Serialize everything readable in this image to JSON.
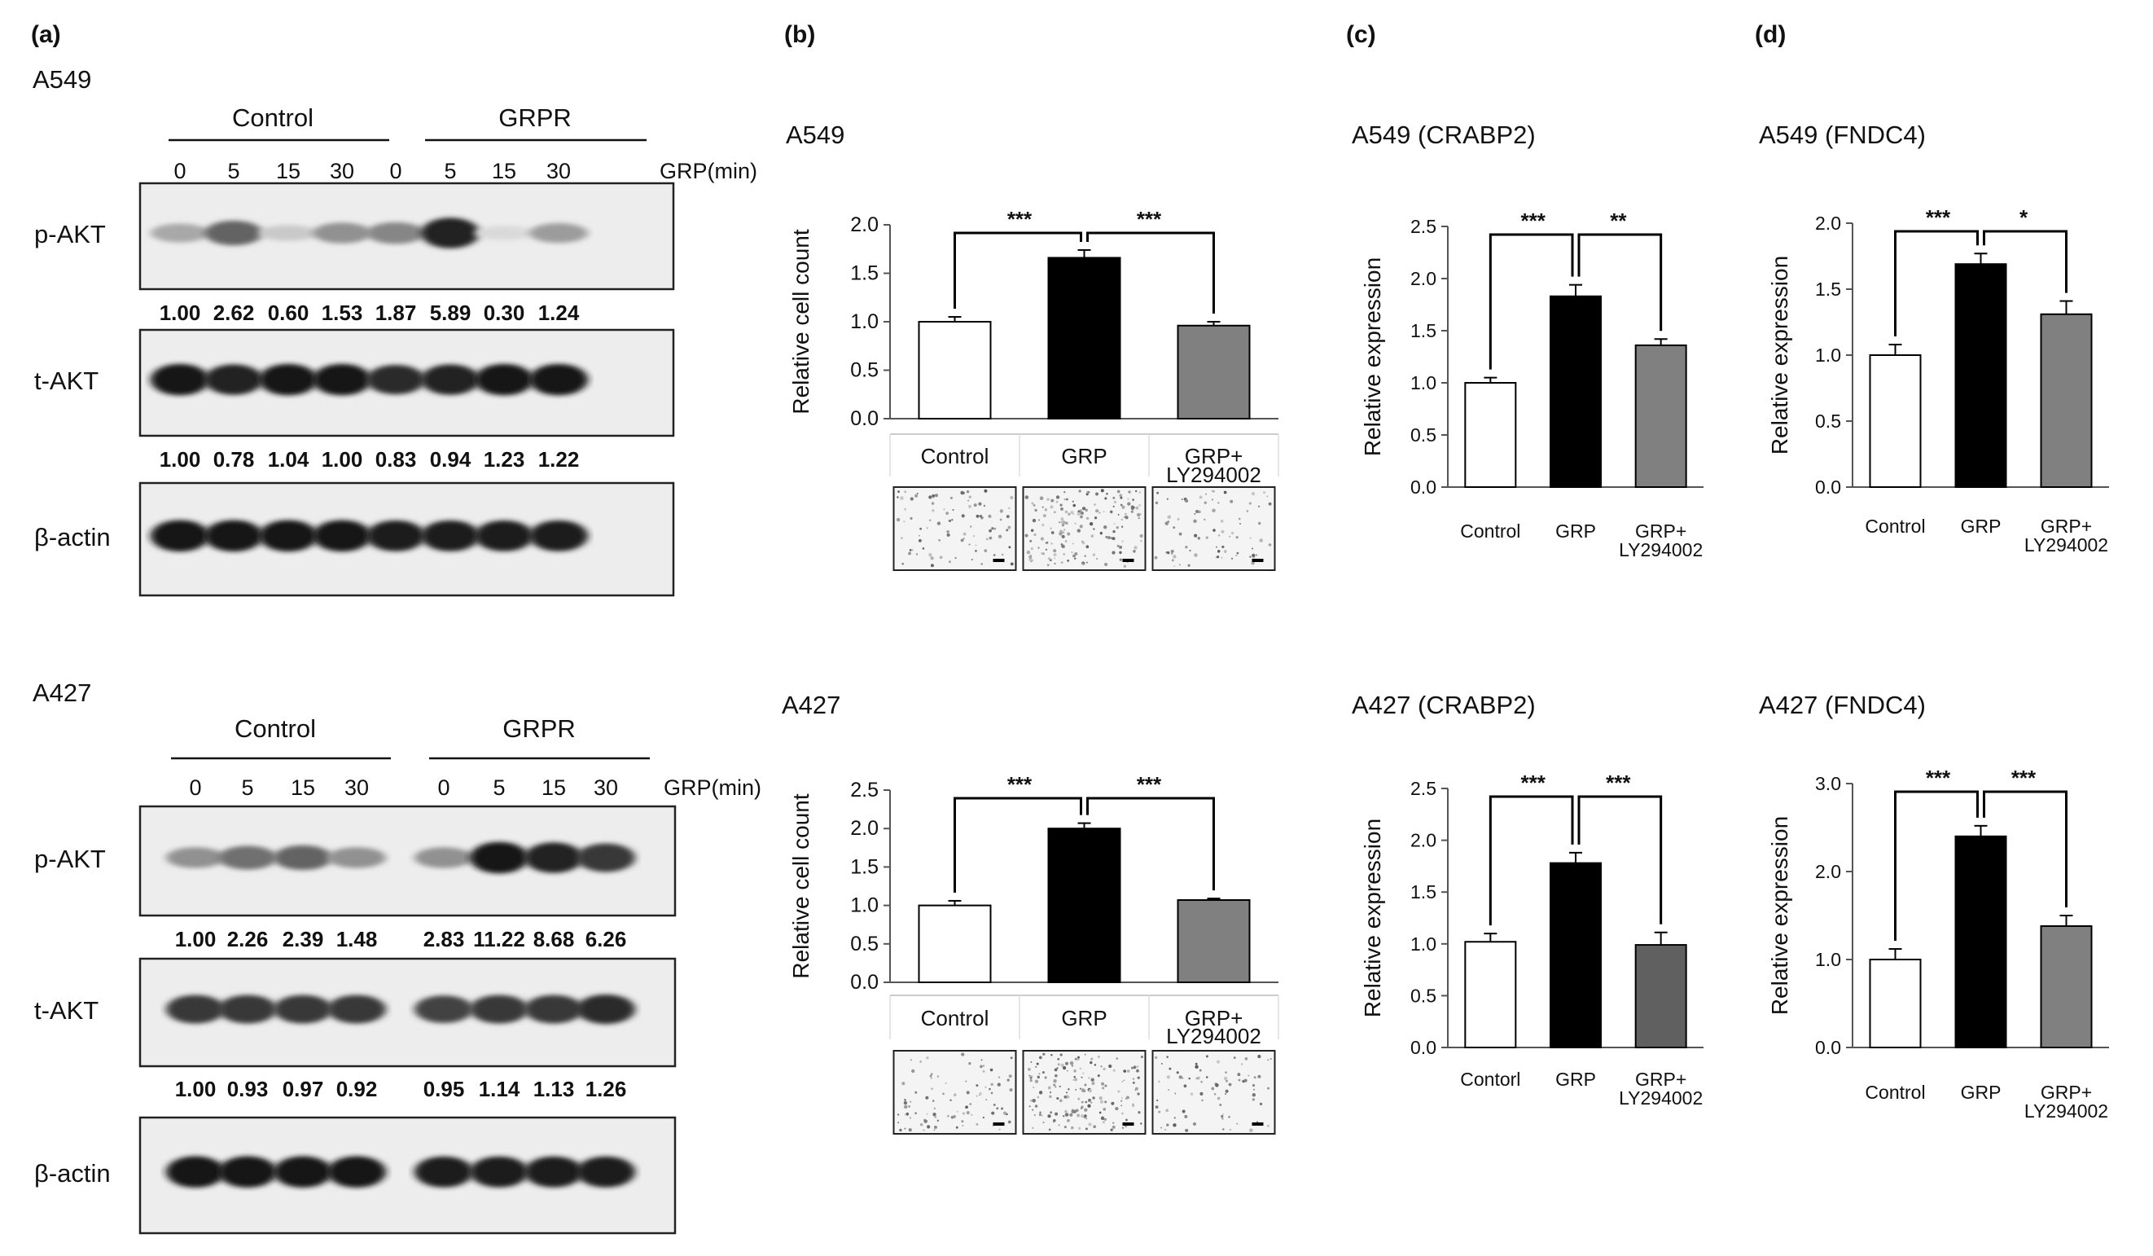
{
  "panel_labels": [
    "(a)",
    "(b)",
    "(c)",
    "(d)"
  ],
  "western": {
    "unit": "GRP(min)",
    "groups": [
      "Control",
      "GRPR"
    ],
    "timepoints": [
      "0",
      "5",
      "15",
      "30",
      "0",
      "5",
      "15",
      "30"
    ],
    "blocks": [
      {
        "cell": "A549",
        "rows": [
          {
            "label": "p-AKT",
            "quant": [
              "1.00",
              "2.62",
              "0.60",
              "1.53",
              "1.87",
              "5.89",
              "0.30",
              "1.24"
            ],
            "intensity": [
              0.3,
              0.6,
              0.15,
              0.4,
              0.45,
              0.9,
              0.08,
              0.35
            ]
          },
          {
            "label": "t-AKT",
            "quant": [
              "1.00",
              "0.78",
              "1.04",
              "1.00",
              "0.83",
              "0.94",
              "1.23",
              "1.22"
            ],
            "intensity": [
              0.95,
              0.9,
              0.95,
              0.95,
              0.85,
              0.9,
              0.95,
              0.95
            ]
          },
          {
            "label": "β-actin",
            "quant": [],
            "intensity": [
              0.95,
              0.95,
              0.95,
              0.95,
              0.92,
              0.92,
              0.92,
              0.92
            ]
          }
        ]
      },
      {
        "cell": "A427",
        "rows": [
          {
            "label": "p-AKT",
            "quant": [
              "1.00",
              "2.26",
              "2.39",
              "1.48",
              "2.83",
              "11.22",
              "8.68",
              "6.26"
            ],
            "intensity": [
              0.4,
              0.55,
              0.6,
              0.4,
              0.4,
              0.95,
              0.9,
              0.8
            ]
          },
          {
            "label": "t-AKT",
            "quant": [
              "1.00",
              "0.93",
              "0.97",
              "0.92",
              "0.95",
              "1.14",
              "1.13",
              "1.26"
            ],
            "intensity": [
              0.8,
              0.8,
              0.8,
              0.8,
              0.75,
              0.8,
              0.8,
              0.85
            ]
          },
          {
            "label": "β-actin",
            "quant": [],
            "intensity": [
              0.95,
              0.95,
              0.95,
              0.95,
              0.92,
              0.92,
              0.92,
              0.92
            ]
          }
        ]
      }
    ]
  },
  "chart_data": [
    {
      "panel": "(b)",
      "type": "bar",
      "title": "A549",
      "ylabel": "Relative cell count",
      "ylim": [
        0,
        2.0
      ],
      "ticks": [
        "0.0",
        "0.5",
        "1.0",
        "1.5",
        "2.0"
      ],
      "categories": [
        "Control",
        "GRP",
        "GRP+\nLY294002"
      ],
      "values": [
        1.0,
        1.66,
        0.96
      ],
      "errors": [
        0.05,
        0.08,
        0.04
      ],
      "colors": [
        "#ffffff",
        "#000000",
        "#808080"
      ],
      "sig": [
        {
          "from": 0,
          "to": 1,
          "label": "***"
        },
        {
          "from": 1,
          "to": 2,
          "label": "***"
        }
      ],
      "images": true
    },
    {
      "panel": "(c)",
      "type": "bar",
      "title": "A549 (CRABP2)",
      "ylabel": "Relative expression",
      "ylim": [
        0,
        2.5
      ],
      "ticks": [
        "0.0",
        "0.5",
        "1.0",
        "1.5",
        "2.0",
        "2.5"
      ],
      "categories": [
        "Control",
        "GRP",
        "GRP+\nLY294002"
      ],
      "values": [
        1.0,
        1.83,
        1.36
      ],
      "errors": [
        0.05,
        0.11,
        0.06
      ],
      "colors": [
        "#ffffff",
        "#000000",
        "#808080"
      ],
      "sig": [
        {
          "from": 0,
          "to": 1,
          "label": "***"
        },
        {
          "from": 1,
          "to": 2,
          "label": "**"
        }
      ],
      "images": false
    },
    {
      "panel": "(d)",
      "type": "bar",
      "title": "A549 (FNDC4)",
      "ylabel": "Relative expression",
      "ylim": [
        0,
        2.0
      ],
      "ticks": [
        "0.0",
        "0.5",
        "1.0",
        "1.5",
        "2.0"
      ],
      "categories": [
        "Control",
        "GRP",
        "GRP+\nLY294002"
      ],
      "values": [
        1.0,
        1.69,
        1.31
      ],
      "errors": [
        0.08,
        0.08,
        0.1
      ],
      "colors": [
        "#ffffff",
        "#000000",
        "#808080"
      ],
      "sig": [
        {
          "from": 0,
          "to": 1,
          "label": "***"
        },
        {
          "from": 1,
          "to": 2,
          "label": "*"
        }
      ],
      "images": false
    },
    {
      "panel": "(b)",
      "type": "bar",
      "title": "A427",
      "ylabel": "Relative cell count",
      "ylim": [
        0,
        2.5
      ],
      "ticks": [
        "0.0",
        "0.5",
        "1.0",
        "1.5",
        "2.0",
        "2.5"
      ],
      "categories": [
        "Control",
        "GRP",
        "GRP+\nLY294002"
      ],
      "values": [
        1.0,
        2.0,
        1.07
      ],
      "errors": [
        0.06,
        0.07,
        0.02
      ],
      "colors": [
        "#ffffff",
        "#000000",
        "#808080"
      ],
      "sig": [
        {
          "from": 0,
          "to": 1,
          "label": "***"
        },
        {
          "from": 1,
          "to": 2,
          "label": "***"
        }
      ],
      "images": true
    },
    {
      "panel": "(c)",
      "type": "bar",
      "title": "A427 (CRABP2)",
      "ylabel": "Relative expression",
      "ylim": [
        0,
        2.5
      ],
      "ticks": [
        "0.0",
        "0.5",
        "1.0",
        "1.5",
        "2.0",
        "2.5"
      ],
      "categories": [
        "Contorl",
        "GRP",
        "GRP+\nLY294002"
      ],
      "values": [
        1.02,
        1.78,
        0.99
      ],
      "errors": [
        0.08,
        0.1,
        0.12
      ],
      "colors": [
        "#ffffff",
        "#000000",
        "#606060"
      ],
      "sig": [
        {
          "from": 0,
          "to": 1,
          "label": "***"
        },
        {
          "from": 1,
          "to": 2,
          "label": "***"
        }
      ],
      "images": false
    },
    {
      "panel": "(d)",
      "type": "bar",
      "title": "A427 (FNDC4)",
      "ylabel": "Relative expression",
      "ylim": [
        0,
        3.0
      ],
      "ticks": [
        "0.0",
        "1.0",
        "2.0",
        "3.0"
      ],
      "categories": [
        "Control",
        "GRP",
        "GRP+\nLY294002"
      ],
      "values": [
        1.0,
        2.4,
        1.38
      ],
      "errors": [
        0.12,
        0.12,
        0.12
      ],
      "colors": [
        "#ffffff",
        "#000000",
        "#808080"
      ],
      "sig": [
        {
          "from": 0,
          "to": 1,
          "label": "***"
        },
        {
          "from": 1,
          "to": 2,
          "label": "***"
        }
      ],
      "images": false
    }
  ]
}
